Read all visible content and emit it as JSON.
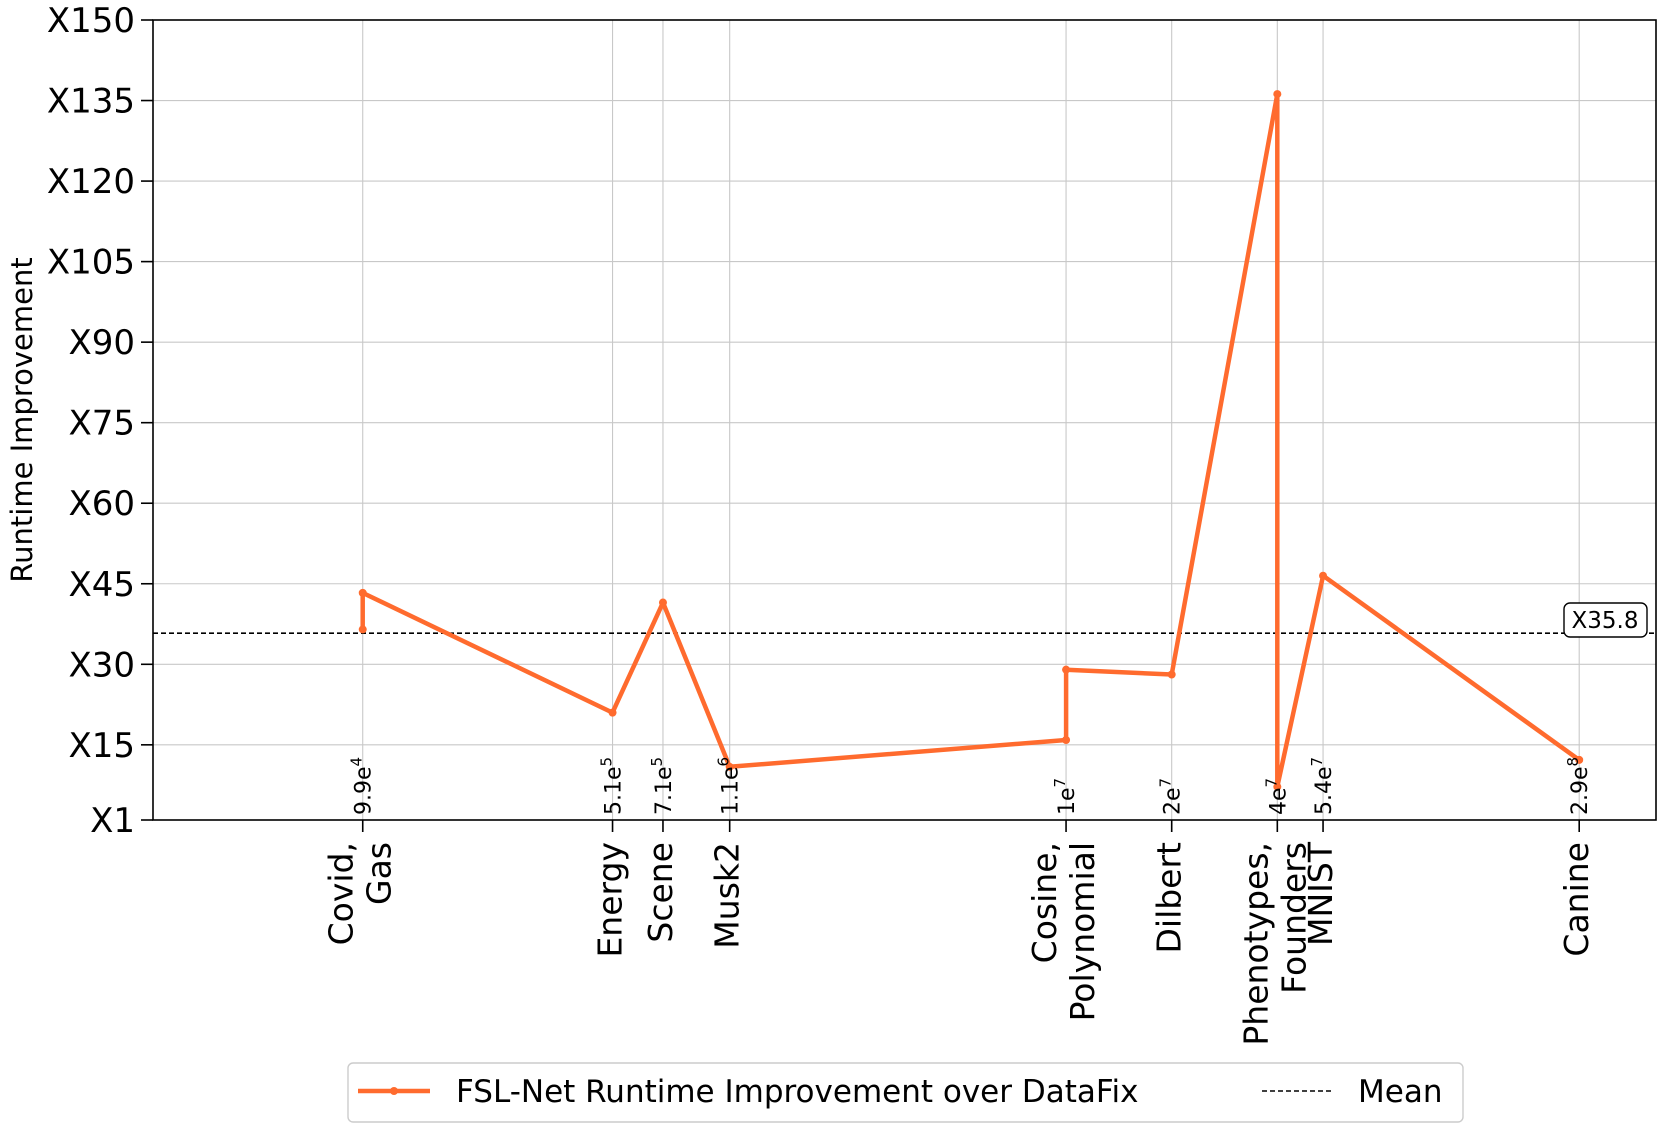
{
  "chart_data": {
    "type": "line",
    "title": "",
    "xlabel": "",
    "ylabel": "Runtime Improvement",
    "ylim": [
      1,
      150
    ],
    "yticks": [
      "X1",
      "X15",
      "X30",
      "X45",
      "X60",
      "X75",
      "X90",
      "X105",
      "X120",
      "X135",
      "X150"
    ],
    "ytick_values": [
      1,
      15,
      30,
      45,
      60,
      75,
      90,
      105,
      120,
      135,
      150
    ],
    "x_scale": "log",
    "x_categories": [
      {
        "label": [
          "Covid,",
          "Gas"
        ],
        "size": "9.9e",
        "exp": "4",
        "value": 99000
      },
      {
        "label": [
          "Energy"
        ],
        "size": "5.1e",
        "exp": "5",
        "value": 510000
      },
      {
        "label": [
          "Scene"
        ],
        "size": "7.1e",
        "exp": "5",
        "value": 710000
      },
      {
        "label": [
          "Musk2"
        ],
        "size": "1.1e",
        "exp": "6",
        "value": 1100000
      },
      {
        "label": [
          "Cosine,",
          "Polynomial"
        ],
        "size": "1e",
        "exp": "7",
        "value": 10000000
      },
      {
        "label": [
          "Dilbert"
        ],
        "size": "2e",
        "exp": "7",
        "value": 20000000
      },
      {
        "label": [
          "Phenotypes,",
          "Founders"
        ],
        "size": "4e",
        "exp": "7",
        "value": 40000000
      },
      {
        "label": [
          "MNIST"
        ],
        "size": "5.4e",
        "exp": "7",
        "value": 54000000
      },
      {
        "label": [
          "Canine"
        ],
        "size": "2.9e",
        "exp": "8",
        "value": 290000000
      }
    ],
    "series": [
      {
        "name": "FSL-Net Runtime Improvement over DataFix",
        "color": "#ff6b2e",
        "points": [
          {
            "x": 99000,
            "y": 36.5
          },
          {
            "x": 99000,
            "y": 43.3
          },
          {
            "x": 510000,
            "y": 21.0
          },
          {
            "x": 710000,
            "y": 41.5
          },
          {
            "x": 1100000,
            "y": 10.9
          },
          {
            "x": 10000000,
            "y": 15.9
          },
          {
            "x": 10000000,
            "y": 29.0
          },
          {
            "x": 20000000,
            "y": 28.1
          },
          {
            "x": 40000000,
            "y": 136.2
          },
          {
            "x": 40000000,
            "y": 7.2
          },
          {
            "x": 54000000,
            "y": 46.5
          },
          {
            "x": 290000000,
            "y": 12.2
          }
        ]
      }
    ],
    "mean": {
      "name": "Mean",
      "value": 35.8,
      "label": "X35.8",
      "color": "#000000"
    },
    "grid": true,
    "legend_position": "bottom-center"
  }
}
